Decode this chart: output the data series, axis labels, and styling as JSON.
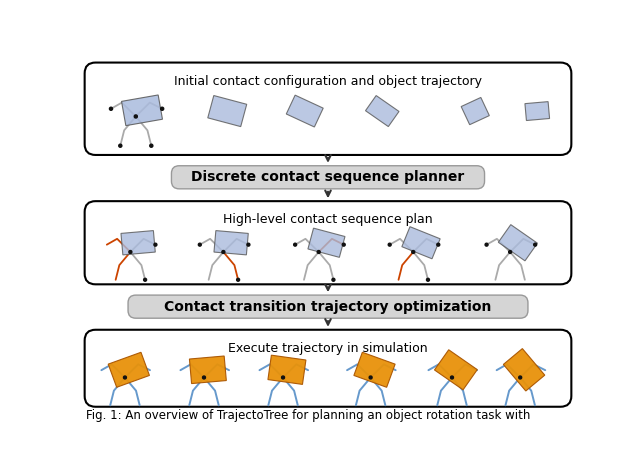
{
  "fig_width": 6.4,
  "fig_height": 4.7,
  "dpi": 100,
  "bg_color": "#ffffff",
  "hand_color_gray": "#aaaaaa",
  "hand_color_blue": "#6699cc",
  "hand_color_dark_blue": "#445566",
  "hand_color_orange": "#cc4400",
  "object_color_blue": "#aabbdd",
  "object_color_orange": "#e8920a",
  "contact_dot_color": "#111111",
  "arrow_color": "#333333",
  "title1": "Initial contact configuration and object trajectory",
  "title2": "High-level contact sequence plan",
  "title3": "Execute trajectory in simulation",
  "label1": "Discrete contact sequence planner",
  "label2": "Contact transition trajectory optimization",
  "caption": "Fig. 1: An overview of TrajectoTree for planning an object rotation task with",
  "title_fontsize": 9,
  "label_fontsize": 10,
  "caption_fontsize": 8.5
}
